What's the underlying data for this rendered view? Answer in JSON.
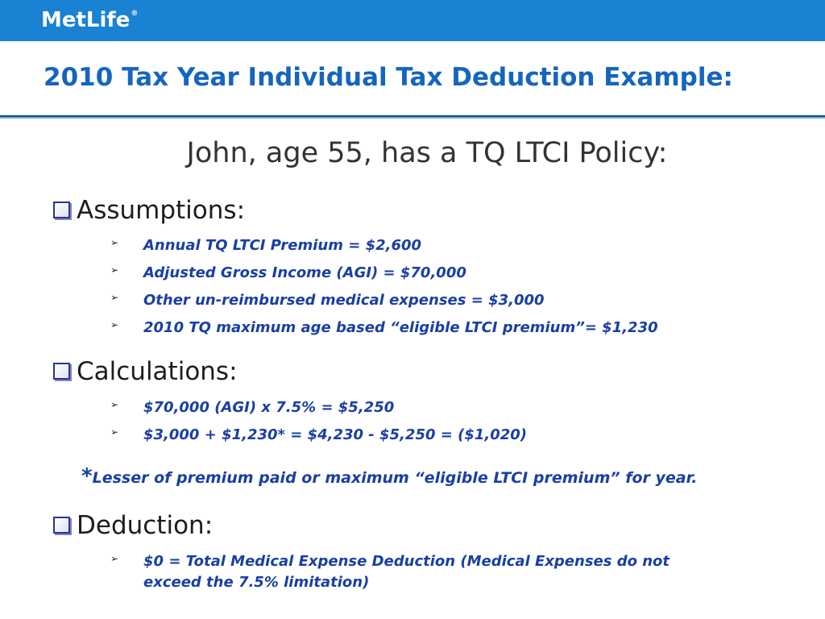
{
  "colors": {
    "header_bar": "#1a82d2",
    "title": "#1565c0",
    "bullet_text": "#1a3fa3",
    "heading_text": "#1d1d1d",
    "checkbox": "#2b3490"
  },
  "brand": {
    "logo_text": "MetLife",
    "registered_mark": "®"
  },
  "slide": {
    "title": "2010 Tax Year Individual Tax Deduction Example:",
    "subtitle": "John, age 55, has a TQ LTCI Policy:"
  },
  "sections": [
    {
      "heading": "Assumptions:",
      "bullets": [
        "Annual TQ LTCI Premium = $2,600",
        "Adjusted Gross Income (AGI) = $70,000",
        "Other un-reimbursed medical expenses = $3,000",
        "2010 TQ maximum age based “eligible LTCI premium”= $1,230"
      ]
    },
    {
      "heading": "Calculations:",
      "bullets": [
        "$70,000 (AGI) x 7.5% = $5,250",
        "$3,000 + $1,230* = $4,230 - $5,250 = ($1,020)"
      ]
    },
    {
      "heading": "Deduction:",
      "bullets": [
        "$0 = Total Medical Expense Deduction (Medical Expenses do not",
        "exceed the 7.5% limitation)"
      ]
    }
  ],
  "footnote": {
    "marker": "*",
    "text": "Lesser of premium paid or maximum “eligible LTCI premium” for year."
  },
  "icons": {
    "section_marker": "checkbox-icon",
    "bullet_marker": "arrowhead-icon"
  }
}
